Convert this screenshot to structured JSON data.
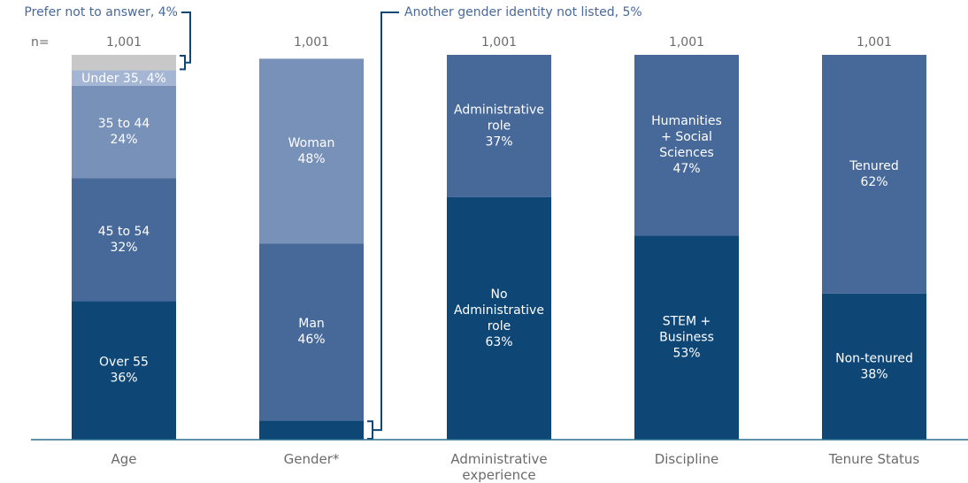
{
  "chart_data": {
    "type": "stacked_bar",
    "n_label": "n=",
    "ylim": [
      0,
      100
    ],
    "bars": [
      {
        "category": "Age",
        "n": "1,001",
        "segments": [
          {
            "name": [
              "Over 55"
            ],
            "value": 36,
            "value_label": "36%",
            "color": "#0e4676"
          },
          {
            "name": [
              "45 to 54"
            ],
            "value": 32,
            "value_label": "32%",
            "color": "#47699a"
          },
          {
            "name": [
              "35 to 44"
            ],
            "value": 24,
            "value_label": "24%",
            "color": "#7891b8"
          },
          {
            "label": "Under 35, 4%",
            "value": 4,
            "color": "#a4b6d3"
          },
          {
            "label": "Prefer not to answer, 4%",
            "value": 4,
            "color": "#c8c8c8",
            "callout": "left"
          }
        ]
      },
      {
        "category": "Gender*",
        "n": "1,001",
        "segments": [
          {
            "label": "Another gender identity not listed, 5%",
            "value": 5,
            "color": "#0e4676",
            "callout": "right"
          },
          {
            "name": [
              "Man"
            ],
            "value": 46,
            "value_label": "46%",
            "color": "#47699a"
          },
          {
            "name": [
              "Woman"
            ],
            "value": 48,
            "value_label": "48%",
            "color": "#7891b8"
          }
        ]
      },
      {
        "category": "Administrative experience",
        "n": "1,001",
        "segments": [
          {
            "name": [
              "No",
              "Administrative",
              "role"
            ],
            "value": 63,
            "value_label": "63%",
            "color": "#0e4676"
          },
          {
            "name": [
              "Administrative",
              "role"
            ],
            "value": 37,
            "value_label": "37%",
            "color": "#47699a"
          }
        ]
      },
      {
        "category": "Discipline",
        "n": "1,001",
        "segments": [
          {
            "name": [
              "STEM +",
              "Business"
            ],
            "value": 53,
            "value_label": "53%",
            "color": "#0e4676"
          },
          {
            "name": [
              "Humanities",
              "+ Social",
              "Sciences"
            ],
            "value": 47,
            "value_label": "47%",
            "color": "#47699a"
          }
        ]
      },
      {
        "category": "Tenure Status",
        "n": "1,001",
        "segments": [
          {
            "name": [
              "Non-tenured"
            ],
            "value": 38,
            "value_label": "38%",
            "color": "#0e4676"
          },
          {
            "name": [
              "Tenured"
            ],
            "value": 62,
            "value_label": "62%",
            "color": "#47699a"
          }
        ]
      }
    ]
  }
}
